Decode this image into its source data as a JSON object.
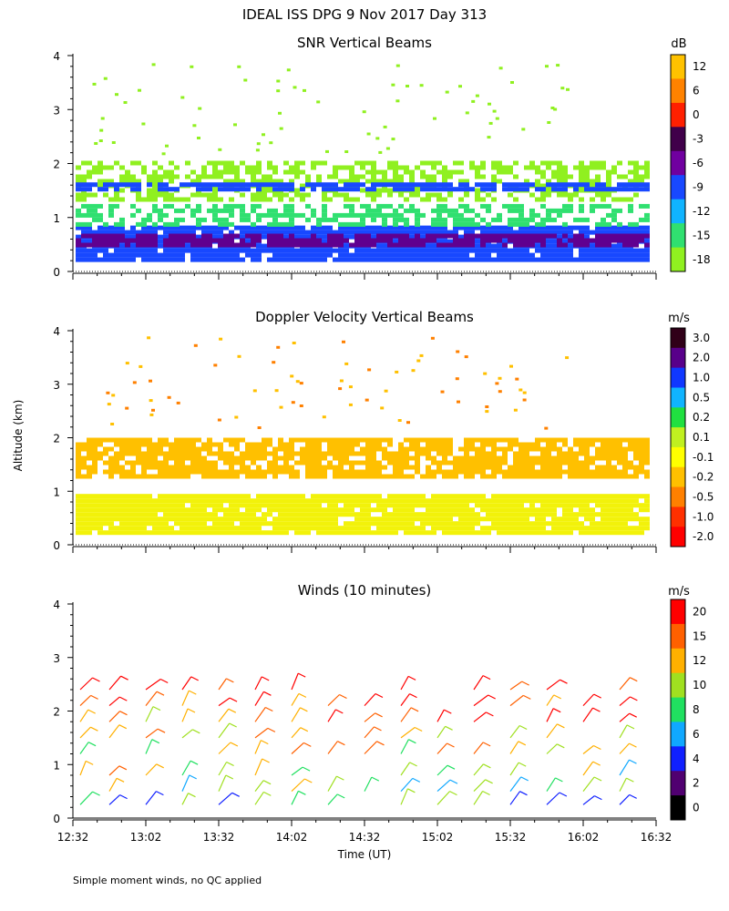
{
  "figure_title": "IDEAL ISS DPG    9 Nov 2017 Day 313",
  "footnote": "Simple moment winds, no QC applied",
  "shared_ylabel": "Altitude (km)",
  "chart_data": [
    {
      "type": "heatmap",
      "title": "SNR Vertical Beams",
      "units_label": "dB",
      "ylim": [
        0,
        4
      ],
      "y_ticks": [
        "0",
        "1",
        "2",
        "3",
        "4"
      ],
      "x_range_minutes": [
        752,
        992
      ],
      "colorbar_ticks": [
        "12",
        "6",
        "0",
        "-3",
        "-6",
        "-9",
        "-12",
        "-15",
        "-18"
      ],
      "colorbar_colors": [
        "#ffc200",
        "#ff8200",
        "#ff2000",
        "#40004a",
        "#7000a0",
        "#1848ff",
        "#10b4ff",
        "#30e070",
        "#90f020"
      ],
      "layers": [
        {
          "z0": 0.22,
          "z1": 0.85,
          "value": -9,
          "color": "#1848ff"
        },
        {
          "z0": 0.5,
          "z1": 0.7,
          "value": -6,
          "color": "#600090"
        },
        {
          "z0": 0.85,
          "z1": 1.25,
          "value": -15,
          "color": "#30e070"
        },
        {
          "z0": 1.35,
          "z1": 2.05,
          "value": -17,
          "color": "#90f020"
        },
        {
          "z0": 1.5,
          "z1": 1.65,
          "value": -9,
          "color": "#1848ff"
        }
      ]
    },
    {
      "type": "heatmap",
      "title": "Doppler Velocity Vertical Beams",
      "units_label": "m/s",
      "ylim": [
        0,
        4
      ],
      "y_ticks": [
        "0",
        "1",
        "2",
        "3",
        "4"
      ],
      "x_range_minutes": [
        752,
        992
      ],
      "colorbar_ticks": [
        "3.0",
        "2.0",
        "1.0",
        "0.5",
        "0.2",
        "0.1",
        "-0.1",
        "-0.2",
        "-0.5",
        "-1.0",
        "-2.0"
      ],
      "colorbar_colors": [
        "#300018",
        "#58008a",
        "#1038ff",
        "#10b4ff",
        "#20e040",
        "#c0f020",
        "#ffff00",
        "#ffc000",
        "#ff8000",
        "#ff3000",
        "#ff0000"
      ],
      "layers": [
        {
          "z0": 0.22,
          "z1": 0.95,
          "value": -0.1,
          "color": "#f2f20a"
        },
        {
          "z0": 1.3,
          "z1": 2.0,
          "value": -0.2,
          "color": "#ffc000"
        }
      ]
    },
    {
      "type": "scatter",
      "title": "Winds (10 minutes)",
      "units_label": "m/s",
      "ylim": [
        0,
        4
      ],
      "y_ticks": [
        "0",
        "1",
        "2",
        "3",
        "4"
      ],
      "x_range_minutes": [
        752,
        992
      ],
      "x_ticks": [
        "12:32",
        "13:02",
        "13:32",
        "14:02",
        "14:32",
        "15:02",
        "15:32",
        "16:02",
        "16:32"
      ],
      "xlabel": "Time (UT)",
      "colorbar_ticks": [
        "20",
        "15",
        "12",
        "10",
        "8",
        "6",
        "4",
        "2",
        "0"
      ],
      "colorbar_colors": [
        "#ff0000",
        "#ff6000",
        "#ffb000",
        "#a0e020",
        "#20e060",
        "#10a8ff",
        "#1020ff",
        "#500070",
        "#000000"
      ],
      "barb_times_minutes": [
        755,
        767,
        782,
        797,
        812,
        827,
        842,
        857,
        872,
        887,
        902,
        917,
        932,
        947,
        962,
        977
      ],
      "barb_heights_km": [
        0.25,
        0.5,
        0.8,
        1.2,
        1.5,
        1.8,
        2.1,
        2.4
      ]
    }
  ]
}
